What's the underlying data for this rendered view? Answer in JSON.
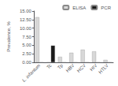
{
  "chart_data": {
    "type": "bar",
    "categories": [
      "L. infantum",
      "Tc",
      "Tp",
      "HBV",
      "HCV",
      "HIV",
      "HTLV"
    ],
    "series": [
      {
        "name": "ELISA",
        "color": "#d8d8d8",
        "values": [
          13.2,
          0.0,
          1.6,
          2.8,
          3.7,
          3.2,
          0.7
        ]
      },
      {
        "name": "PCR",
        "color": "#1a1a1a",
        "values": [
          0.0,
          4.9,
          0.0,
          0.0,
          0.0,
          0.0,
          0.0
        ]
      }
    ],
    "ylabel": "Prevalence, %",
    "ylim": [
      0,
      15.0
    ],
    "yticks": [
      {
        "value": 0.0,
        "label": "0.00"
      },
      {
        "value": 2.5,
        "label": "2.50"
      },
      {
        "value": 5.0,
        "label": "5.00"
      },
      {
        "value": 7.5,
        "label": "7.50"
      },
      {
        "value": 10.0,
        "label": "10.00"
      },
      {
        "value": 12.5,
        "label": "12.50"
      },
      {
        "value": 15.0,
        "label": "15.00"
      }
    ],
    "grid": false,
    "legend": "upper right"
  }
}
